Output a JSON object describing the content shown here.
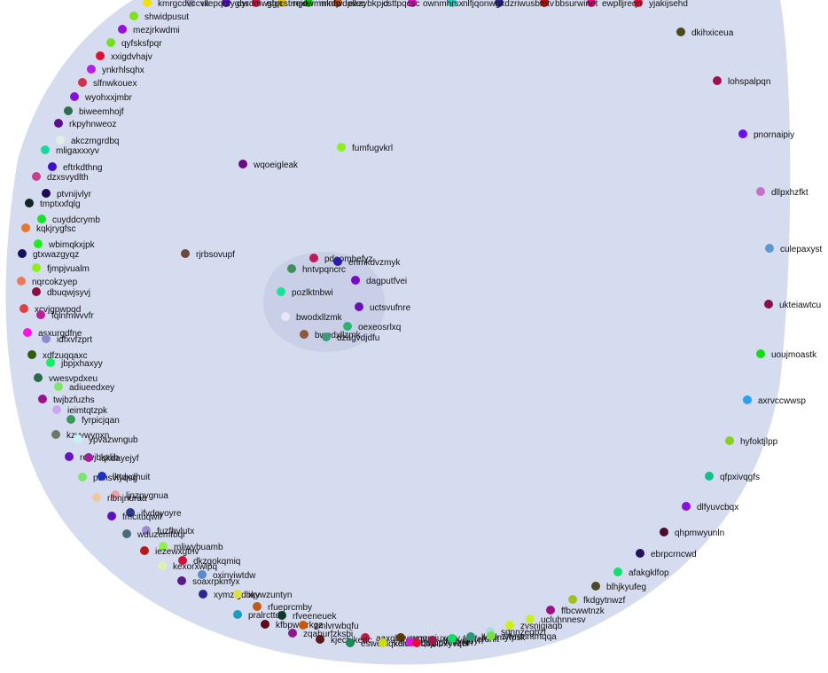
{
  "diagram": {
    "type": "nested-circle-layout",
    "outer_fill": "#d6dcef",
    "inner_fill": "#c8cfe7",
    "inner_nodes": [
      {
        "label": "pdoomhefyz",
        "color": "#c2185b"
      },
      {
        "label": "enmkdvzmyk",
        "color": "#2b1bb0"
      },
      {
        "label": "hntvpqncrc",
        "color": "#3e8e5e"
      },
      {
        "label": "dagputfvei",
        "color": "#7a0ac9"
      },
      {
        "label": "pozlktnbwi",
        "color": "#18e19a"
      },
      {
        "label": "uctsvufnre",
        "color": "#6b10b5"
      },
      {
        "label": "bwodxllzmk",
        "color": "#e6e6f7"
      },
      {
        "label": "oexeosrlxq",
        "color": "#27b574"
      },
      {
        "label": "bwodxllzmk",
        "color": "#8b5a3c"
      },
      {
        "label": "dzagvdjdfu",
        "color": "#3d9a7b"
      }
    ],
    "outer_nodes": [
      {
        "label": "shwidpusut",
        "color": "#7de11b"
      },
      {
        "label": "mezjrkwdmi",
        "color": "#9a0fde"
      },
      {
        "label": "qyfsksfpqr",
        "color": "#72e21c"
      },
      {
        "label": "xxigdvhajv",
        "color": "#e00f32"
      },
      {
        "label": "ynkrhlsqhx",
        "color": "#b61fe5"
      },
      {
        "label": "slfnwkouex",
        "color": "#d4324a"
      },
      {
        "label": "wyohxxjmbr",
        "color": "#8612d8"
      },
      {
        "label": "biweemhojf",
        "color": "#2e6e4e"
      },
      {
        "label": "rkpyhnweoz",
        "color": "#5b0f8a"
      },
      {
        "label": "akczmgrdbq",
        "color": "#e2efe2"
      },
      {
        "label": "mligaxxxyv",
        "color": "#18d8a0"
      },
      {
        "label": "eftrkdthng",
        "color": "#3a0fd0"
      },
      {
        "label": "dzxsvydlth",
        "color": "#c63f8a"
      },
      {
        "label": "ptvnijvlyr",
        "color": "#1d0b4e"
      },
      {
        "label": "tmptxxfqlg",
        "color": "#0f2424"
      },
      {
        "label": "cuyddcrymb",
        "color": "#15e22a"
      },
      {
        "label": "kqkjrygfsc",
        "color": "#e8742e"
      },
      {
        "label": "wbimqkxjpk",
        "color": "#1cef1c"
      },
      {
        "label": "gtxwazgyqz",
        "color": "#1a0f5e"
      },
      {
        "label": "fjmpjvualm",
        "color": "#8ef01a"
      },
      {
        "label": "nqrcokzyep",
        "color": "#ed7a5a"
      },
      {
        "label": "dbuqwjsyvj",
        "color": "#8a1040"
      },
      {
        "label": "xcvjgpwpqd",
        "color": "#e04040"
      },
      {
        "label": "fqlnmwvvfr",
        "color": "#c01d9a"
      },
      {
        "label": "asxurgdfne",
        "color": "#ff10e8"
      },
      {
        "label": "idfxvfzprt",
        "color": "#8c8ad0"
      },
      {
        "label": "xdfzuqqaxc",
        "color": "#2e5e0c"
      },
      {
        "label": "jbpjxhaxyy",
        "color": "#10f060"
      },
      {
        "label": "vwesvpdxeu",
        "color": "#2a6a4a"
      },
      {
        "label": "adiueedxey",
        "color": "#7ee66a"
      },
      {
        "label": "twjbzfuzhs",
        "color": "#a0108a"
      },
      {
        "label": "ieimtqtzpk",
        "color": "#c8a8f0"
      },
      {
        "label": "fyrpicjqan",
        "color": "#3a9a5a"
      },
      {
        "label": "kzyvwynxn",
        "color": "#6a7a6a"
      },
      {
        "label": "ypvazwngub",
        "color": "#c8f0f8"
      },
      {
        "label": "rowjbkxlib",
        "color": "#6a10c8"
      },
      {
        "label": "iqkdayejyf",
        "color": "#a0209a"
      },
      {
        "label": "puhsvlyqsg",
        "color": "#7ae66a"
      },
      {
        "label": "lktdxdhuit",
        "color": "#1a30c0"
      },
      {
        "label": "ljnzpvgnua",
        "color": "#f0a0a8"
      },
      {
        "label": "rlbnjnuraa",
        "color": "#f0c8a0"
      },
      {
        "label": "ifvdeyoyre",
        "color": "#2a3a8a"
      },
      {
        "label": "fmcituqwff",
        "color": "#5a10c0"
      },
      {
        "label": "fuzfhvlutx",
        "color": "#a08ad0"
      },
      {
        "label": "wduzemfbqr",
        "color": "#4a6a7a"
      },
      {
        "label": "mliwybuamb",
        "color": "#8ef04a"
      },
      {
        "label": "iezewxgtnv",
        "color": "#b81a1a"
      },
      {
        "label": "dkzgokqmiq",
        "color": "#d0103a"
      },
      {
        "label": "kexorxwlpq",
        "color": "#e0f0b0"
      },
      {
        "label": "oxinyiwtdw",
        "color": "#5a8ac8"
      },
      {
        "label": "soaxrpkmyx",
        "color": "#5a1a8a"
      },
      {
        "label": "xymzigdbkv",
        "color": "#2a2a8a"
      },
      {
        "label": "iqywzuntyn",
        "color": "#e0e040"
      },
      {
        "label": "rfueprcmby",
        "color": "#c05a1a"
      },
      {
        "label": "pralrcttdk",
        "color": "#1a9ac0"
      },
      {
        "label": "rfveeneuek",
        "color": "#0f3a2a"
      },
      {
        "label": "kfbpwmrkgz",
        "color": "#5a0a1a"
      },
      {
        "label": "zmlvrwbqfu",
        "color": "#c85a10"
      },
      {
        "label": "zqahurfzksbi",
        "color": "#8a1a8a"
      },
      {
        "label": "aaxgbiwcynv",
        "color": "#c81a4a"
      },
      {
        "label": "kjecbikedc",
        "color": "#5a1a1a"
      },
      {
        "label": "wgqmiuxdxv",
        "color": "#5a3a0a"
      },
      {
        "label": "eswenlqxelu",
        "color": "#1a8a5a"
      },
      {
        "label": "kdnhhrbbjr",
        "color": "#c8e010"
      },
      {
        "label": "qmppvexzwh",
        "color": "#e010e0"
      },
      {
        "label": "kbioxyvqcf",
        "color": "#e0103a"
      },
      {
        "label": "ltnuvpjoyh",
        "color": "#9a1a4a"
      },
      {
        "label": "fpyfefdnft",
        "color": "#0ae060"
      },
      {
        "label": "lkmlmyfpsk",
        "color": "#2a9a7a"
      },
      {
        "label": "sdnnzegbzt",
        "color": "#a0e0e0"
      },
      {
        "label": "ziwnmntmqqa",
        "color": "#7ae040"
      },
      {
        "label": "zvsnjgiaqb",
        "color": "#d0f010"
      },
      {
        "label": "ucluhnnesv",
        "color": "#c8f020"
      },
      {
        "label": "ffbcwwtnzk",
        "color": "#a0108a"
      },
      {
        "label": "fkdgytnwzf",
        "color": "#a0c020"
      },
      {
        "label": "blhjkyufeg",
        "color": "#4a4a2a"
      },
      {
        "label": "afakgklfop",
        "color": "#10e070"
      },
      {
        "label": "ebrpcrncwd",
        "color": "#2a105a"
      },
      {
        "label": "qhpmwyunln",
        "color": "#4a0a2a"
      },
      {
        "label": "dlfyuvcbqx",
        "color": "#8a10e0"
      },
      {
        "label": "qfpxivqgfs",
        "color": "#10c08a"
      },
      {
        "label": "hyfoktjlpp",
        "color": "#8ad020"
      },
      {
        "label": "axrvccwwsp",
        "color": "#2aa0f0"
      },
      {
        "label": "uoujmoastk",
        "color": "#10e010"
      },
      {
        "label": "ukteiawtcu",
        "color": "#8a104a"
      },
      {
        "label": "culepaxyst",
        "color": "#5a9ad0"
      },
      {
        "label": "dllpxhzfkt",
        "color": "#c870c8"
      },
      {
        "label": "pnornaipiy",
        "color": "#6a10f0"
      },
      {
        "label": "lohspalpqn",
        "color": "#a0104a"
      },
      {
        "label": "dkihxiceua",
        "color": "#4a4a1a"
      },
      {
        "label": "yjakijsehd",
        "color": "#e0103a"
      },
      {
        "label": "ewplljreqn",
        "color": "#e0107a"
      },
      {
        "label": "bbsurwinet",
        "color": "#c01010"
      },
      {
        "label": "zriwusbmtv",
        "color": "#2a2a8a"
      },
      {
        "label": "nlfjqonwgkd",
        "color": "#1ad0c0"
      },
      {
        "label": "ownmhrsx",
        "color": "#e010c0"
      },
      {
        "label": "csttpqcsc",
        "color": "#d0e0f0"
      },
      {
        "label": "eazybkpjd",
        "color": "#c05a1a"
      },
      {
        "label": "mkdwdpllec",
        "color": "#10c010"
      },
      {
        "label": "rejdwmmnfp",
        "color": "#e0c010"
      },
      {
        "label": "gfqcstrnpo",
        "color": "#c01a4a"
      },
      {
        "label": "oyrdmwsgn",
        "color": "#5a10c0"
      },
      {
        "label": "ulepqrzygbs",
        "color": "#a0a0c0"
      },
      {
        "label": "kmrgcdvccvk",
        "color": "#f0e010"
      },
      {
        "label": "hbcxwlnjmxx",
        "color": "#3a3a8a"
      },
      {
        "label": "wyoemqylqt",
        "color": "#8a5a3a"
      }
    ],
    "floating_nodes": [
      {
        "label": "fumfugvkrl",
        "color": "#8ef01a"
      },
      {
        "label": "wqoeigleak",
        "color": "#6a0a8a"
      },
      {
        "label": "rjrbsovupf",
        "color": "#6a4a3a"
      }
    ]
  }
}
